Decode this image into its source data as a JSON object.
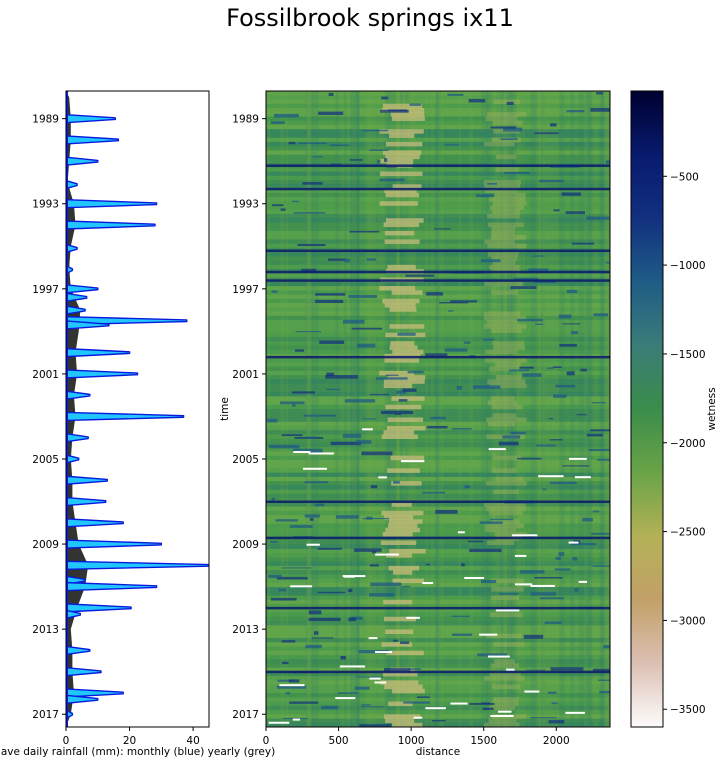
{
  "title": "Fossilbrook springs ix11",
  "chart_data": [
    {
      "type": "area",
      "name": "rainfall-panel",
      "xlabel": "ave daily rainfall (mm): monthly (blue) yearly (grey)",
      "ylabel": "",
      "xlim": [
        0,
        45
      ],
      "ylim": [
        1987.7,
        2017.6
      ],
      "y_inverted": true,
      "xticks": [
        0,
        20,
        40
      ],
      "yticks": [
        1989,
        1993,
        1997,
        2001,
        2005,
        2009,
        2013,
        2017
      ],
      "monthly_peaks": [
        {
          "t": 1989.0,
          "v": 15.5
        },
        {
          "t": 1990.0,
          "v": 16.5
        },
        {
          "t": 1991.0,
          "v": 10.0
        },
        {
          "t": 1992.1,
          "v": 3.5
        },
        {
          "t": 1993.0,
          "v": 28.5
        },
        {
          "t": 1994.0,
          "v": 28.0
        },
        {
          "t": 1995.1,
          "v": 3.5
        },
        {
          "t": 1996.1,
          "v": 2.0
        },
        {
          "t": 1997.0,
          "v": 10.0
        },
        {
          "t": 1997.4,
          "v": 6.5
        },
        {
          "t": 1998.0,
          "v": 6.0
        },
        {
          "t": 1998.5,
          "v": 38.0
        },
        {
          "t": 1998.7,
          "v": 13.5
        },
        {
          "t": 2000.0,
          "v": 20.0
        },
        {
          "t": 2001.0,
          "v": 22.5
        },
        {
          "t": 2002.0,
          "v": 7.5
        },
        {
          "t": 2003.0,
          "v": 37.0
        },
        {
          "t": 2004.0,
          "v": 7.0
        },
        {
          "t": 2005.0,
          "v": 4.0
        },
        {
          "t": 2006.0,
          "v": 13.0
        },
        {
          "t": 2007.0,
          "v": 12.5
        },
        {
          "t": 2008.0,
          "v": 18.0
        },
        {
          "t": 2009.0,
          "v": 30.0
        },
        {
          "t": 2010.0,
          "v": 45.0
        },
        {
          "t": 2010.7,
          "v": 6.0
        },
        {
          "t": 2011.0,
          "v": 28.5
        },
        {
          "t": 2012.0,
          "v": 20.5
        },
        {
          "t": 2012.3,
          "v": 4.5
        },
        {
          "t": 2014.0,
          "v": 7.5
        },
        {
          "t": 2015.0,
          "v": 11.0
        },
        {
          "t": 2016.0,
          "v": 18.0
        },
        {
          "t": 2016.3,
          "v": 10.0
        },
        {
          "t": 2017.0,
          "v": 2.0
        }
      ],
      "yearly_points": [
        {
          "t": 1988.0,
          "v": 1.0
        },
        {
          "t": 1989.0,
          "v": 1.5
        },
        {
          "t": 1990.0,
          "v": 1.5
        },
        {
          "t": 1991.0,
          "v": 1.0
        },
        {
          "t": 1992.0,
          "v": 0.5
        },
        {
          "t": 1993.0,
          "v": 2.5
        },
        {
          "t": 1994.0,
          "v": 3.0
        },
        {
          "t": 1995.0,
          "v": 1.5
        },
        {
          "t": 1996.0,
          "v": 1.0
        },
        {
          "t": 1997.0,
          "v": 1.5
        },
        {
          "t": 1998.0,
          "v": 4.5
        },
        {
          "t": 1999.0,
          "v": 4.0
        },
        {
          "t": 2000.0,
          "v": 3.0
        },
        {
          "t": 2001.0,
          "v": 3.5
        },
        {
          "t": 2002.0,
          "v": 2.5
        },
        {
          "t": 2003.0,
          "v": 3.0
        },
        {
          "t": 2004.0,
          "v": 2.0
        },
        {
          "t": 2005.0,
          "v": 1.5
        },
        {
          "t": 2006.0,
          "v": 2.0
        },
        {
          "t": 2007.0,
          "v": 2.0
        },
        {
          "t": 2008.0,
          "v": 3.0
        },
        {
          "t": 2009.0,
          "v": 4.0
        },
        {
          "t": 2010.0,
          "v": 7.0
        },
        {
          "t": 2011.0,
          "v": 6.0
        },
        {
          "t": 2012.0,
          "v": 3.5
        },
        {
          "t": 2013.0,
          "v": 1.5
        },
        {
          "t": 2014.0,
          "v": 2.0
        },
        {
          "t": 2015.0,
          "v": 2.0
        },
        {
          "t": 2016.0,
          "v": 2.5
        },
        {
          "t": 2017.0,
          "v": 1.5
        }
      ],
      "colors": {
        "monthly_fill": "#21c6ff",
        "monthly_line": "#0a1adc",
        "yearly_fill": "#333333"
      }
    },
    {
      "type": "heatmap",
      "name": "wetness-panel",
      "xlabel": "distance",
      "ylabel": "time",
      "xlim": [
        0,
        2370
      ],
      "ylim": [
        1987.7,
        2017.6
      ],
      "y_inverted": true,
      "xticks": [
        0,
        500,
        1000,
        1500,
        2000
      ],
      "yticks": [
        1989,
        1993,
        1997,
        2001,
        2005,
        2009,
        2013,
        2017
      ],
      "colormap": "gist_earth_r",
      "dry_bands": [
        {
          "x0": 780,
          "x1": 1100
        },
        {
          "x0": 1500,
          "x1": 1800
        }
      ],
      "wet_time_bands": [
        1991.2,
        1992.3,
        1995.2,
        1996.2,
        1996.6,
        2000.2,
        2007.0,
        2008.7,
        2012.0,
        2015.0
      ]
    },
    {
      "type": "colorbar",
      "name": "wetness-colorbar",
      "label": "wetness",
      "range": [
        -3600,
        -20
      ],
      "ticks": [
        -500,
        -1000,
        -1500,
        -2000,
        -2500,
        -3000,
        -3500
      ],
      "tick_labels": [
        "−500",
        "−1000",
        "−1500",
        "−2000",
        "−2500",
        "−3000",
        "−3500"
      ],
      "colors": [
        "#fdfbfb",
        "#dcc0b3",
        "#c2a068",
        "#b3b156",
        "#6aa347",
        "#3a8d4b",
        "#3a7c77",
        "#1f5c86",
        "#12307f",
        "#081a6d",
        "#000030"
      ]
    }
  ]
}
